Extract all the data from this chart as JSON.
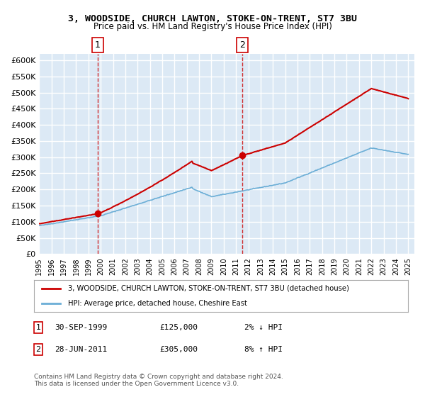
{
  "title": "3, WOODSIDE, CHURCH LAWTON, STOKE-ON-TRENT, ST7 3BU",
  "subtitle": "Price paid vs. HM Land Registry's House Price Index (HPI)",
  "ylabel_ticks": [
    "£0",
    "£50K",
    "£100K",
    "£150K",
    "£200K",
    "£250K",
    "£300K",
    "£350K",
    "£400K",
    "£450K",
    "£500K",
    "£550K",
    "£600K"
  ],
  "ytick_values": [
    0,
    50000,
    100000,
    150000,
    200000,
    250000,
    300000,
    350000,
    400000,
    450000,
    500000,
    550000,
    600000
  ],
  "ylim": [
    0,
    620000
  ],
  "xlim_start": 1995.0,
  "xlim_end": 2025.5,
  "background_color": "#dce9f5",
  "plot_bg_color": "#dce9f5",
  "grid_color": "#ffffff",
  "sale1_date": 1999.75,
  "sale1_price": 125000,
  "sale2_date": 2011.5,
  "sale2_price": 305000,
  "sale1_label": "1",
  "sale2_label": "2",
  "legend_line1": "3, WOODSIDE, CHURCH LAWTON, STOKE-ON-TRENT, ST7 3BU (detached house)",
  "legend_line2": "HPI: Average price, detached house, Cheshire East",
  "annot1_num": "1",
  "annot1_date": "30-SEP-1999",
  "annot1_price": "£125,000",
  "annot1_pct": "2% ↓ HPI",
  "annot2_num": "2",
  "annot2_date": "28-JUN-2011",
  "annot2_price": "£305,000",
  "annot2_pct": "8% ↑ HPI",
  "footer": "Contains HM Land Registry data © Crown copyright and database right 2024.\nThis data is licensed under the Open Government Licence v3.0.",
  "hpi_color": "#6baed6",
  "price_color": "#cc0000",
  "dashed_vline_color": "#cc0000"
}
